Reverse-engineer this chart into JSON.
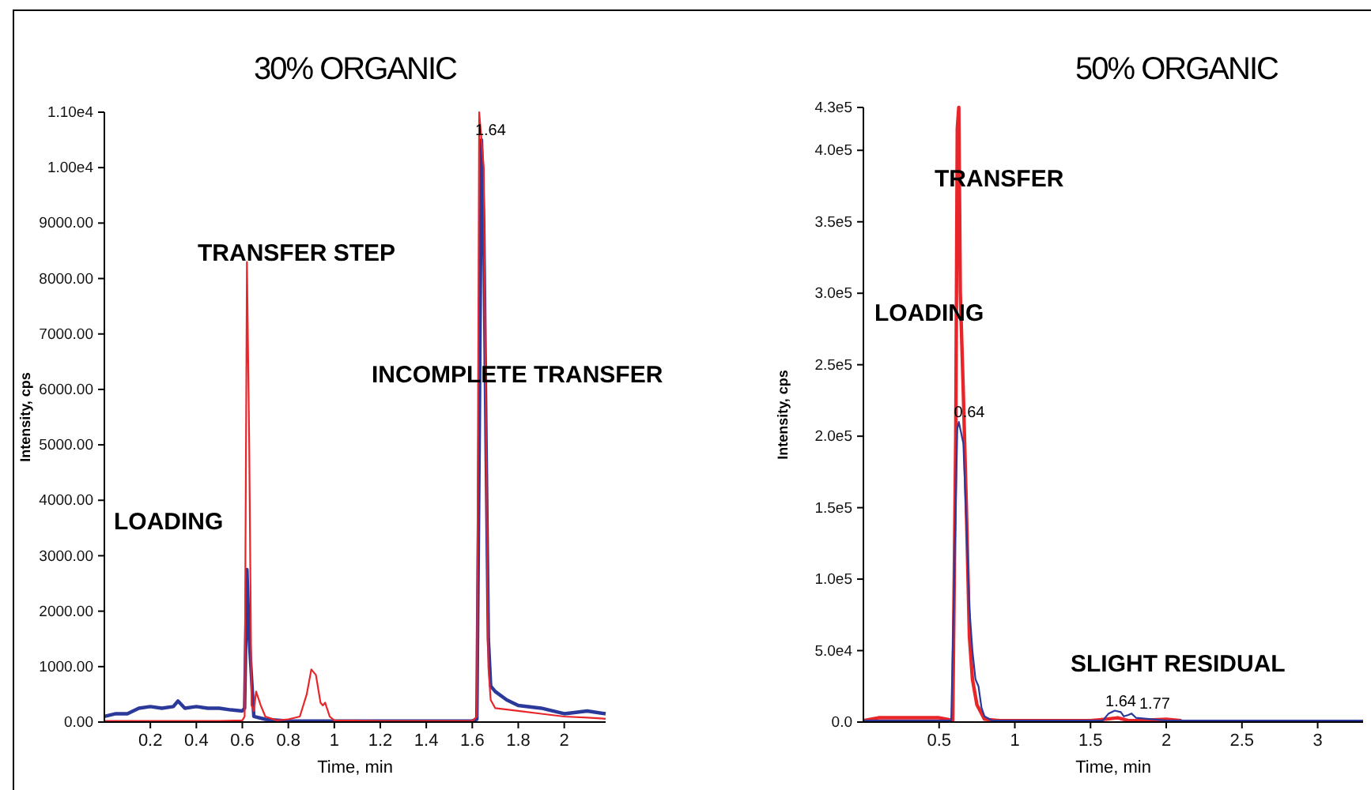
{
  "chart_data": [
    {
      "type": "line",
      "title": "30% ORGANIC",
      "xlabel": "Time, min",
      "ylabel": "Intensity, cps",
      "xlim": [
        0,
        2.18
      ],
      "xticks": [
        0.2,
        0.4,
        0.6,
        0.8,
        1.0,
        1.2,
        1.4,
        1.6,
        1.8,
        2.0
      ],
      "ylim": [
        0,
        11000
      ],
      "yticks": [
        {
          "value": 0,
          "label": "0.00"
        },
        {
          "value": 1000,
          "label": "1000.00"
        },
        {
          "value": 2000,
          "label": "2000.00"
        },
        {
          "value": 3000,
          "label": "3000.00"
        },
        {
          "value": 4000,
          "label": "4000.00"
        },
        {
          "value": 5000,
          "label": "5000.00"
        },
        {
          "value": 6000,
          "label": "6000.00"
        },
        {
          "value": 7000,
          "label": "7000.00"
        },
        {
          "value": 8000,
          "label": "8000.00"
        },
        {
          "value": 9000,
          "label": "9000.00"
        },
        {
          "value": 10000,
          "label": "1.00e4"
        },
        {
          "value": 11000,
          "label": "1.10e4"
        }
      ],
      "grid": false,
      "series": [
        {
          "color": "#2b3a9a",
          "x": [
            0,
            0.05,
            0.1,
            0.15,
            0.2,
            0.25,
            0.3,
            0.32,
            0.35,
            0.4,
            0.45,
            0.5,
            0.55,
            0.6,
            0.61,
            0.62,
            0.63,
            0.65,
            0.7,
            0.8,
            1.0,
            1.2,
            1.4,
            1.6,
            1.62,
            1.63,
            1.64,
            1.65,
            1.66,
            1.67,
            1.68,
            1.7,
            1.75,
            1.8,
            1.9,
            2.0,
            2.1,
            2.18
          ],
          "values": [
            100,
            150,
            150,
            250,
            280,
            250,
            280,
            380,
            250,
            280,
            250,
            250,
            220,
            200,
            250,
            2750,
            1500,
            100,
            50,
            20,
            20,
            20,
            20,
            20,
            50,
            5000,
            10500,
            9000,
            5000,
            1500,
            650,
            550,
            400,
            300,
            250,
            150,
            200,
            150
          ]
        },
        {
          "color": "#e8262a",
          "x": [
            0,
            0.1,
            0.2,
            0.3,
            0.4,
            0.5,
            0.6,
            0.61,
            0.62,
            0.63,
            0.64,
            0.65,
            0.66,
            0.68,
            0.7,
            0.75,
            0.8,
            0.85,
            0.88,
            0.9,
            0.92,
            0.94,
            0.95,
            0.96,
            0.98,
            1.0,
            1.2,
            1.4,
            1.6,
            1.62,
            1.63,
            1.65,
            1.66,
            1.67,
            1.68,
            1.7,
            1.8,
            1.9,
            2.0,
            2.1,
            2.18
          ],
          "values": [
            20,
            20,
            20,
            20,
            20,
            20,
            30,
            100,
            8300,
            5000,
            300,
            200,
            550,
            300,
            100,
            30,
            50,
            100,
            500,
            950,
            850,
            350,
            300,
            350,
            100,
            30,
            20,
            20,
            20,
            100,
            11000,
            10000,
            5000,
            1000,
            400,
            250,
            200,
            150,
            100,
            80,
            60
          ]
        }
      ],
      "annotations": [
        "TRANSFER STEP",
        "LOADING",
        "INCOMPLETE TRANSFER",
        {
          "text": "1.64",
          "x": 1.64,
          "y": 10500
        }
      ]
    },
    {
      "type": "line",
      "title": "50% ORGANIC",
      "xlabel": "Time, min",
      "ylabel": "Intensity, cps",
      "xlim": [
        0,
        3.3
      ],
      "xticks": [
        0.5,
        1.0,
        1.5,
        2.0,
        2.5,
        3.0
      ],
      "ylim": [
        0,
        430000
      ],
      "yticks": [
        {
          "value": 0,
          "label": "0.0"
        },
        {
          "value": 50000,
          "label": "5.0e4"
        },
        {
          "value": 100000,
          "label": "1.0e5"
        },
        {
          "value": 150000,
          "label": "1.5e5"
        },
        {
          "value": 200000,
          "label": "2.0e5"
        },
        {
          "value": 250000,
          "label": "2.5e5"
        },
        {
          "value": 300000,
          "label": "3.0e5"
        },
        {
          "value": 350000,
          "label": "3.5e5"
        },
        {
          "value": 400000,
          "label": "4.0e5"
        },
        {
          "value": 430000,
          "label": "4.3e5"
        }
      ],
      "grid": false,
      "series": [
        {
          "color": "#e8262a",
          "x": [
            0,
            0.1,
            0.2,
            0.3,
            0.4,
            0.5,
            0.55,
            0.59,
            0.61,
            0.62,
            0.63,
            0.64,
            0.66,
            0.68,
            0.7,
            0.72,
            0.75,
            0.8,
            0.9,
            1.2,
            1.5,
            1.6,
            1.68,
            1.75,
            1.8,
            2.0,
            2.1
          ],
          "values": [
            1000,
            3000,
            3000,
            3000,
            3000,
            3000,
            2000,
            1000,
            200000,
            415000,
            430000,
            300000,
            230000,
            150000,
            60000,
            30000,
            12000,
            2000,
            1000,
            1000,
            1000,
            2000,
            3000,
            1000,
            1000,
            2000,
            1000
          ]
        },
        {
          "color": "#2b3a9a",
          "x": [
            0,
            0.3,
            0.5,
            0.58,
            0.6,
            0.62,
            0.63,
            0.64,
            0.66,
            0.68,
            0.7,
            0.72,
            0.74,
            0.76,
            0.78,
            0.8,
            0.85,
            1.0,
            1.5,
            1.58,
            1.62,
            1.66,
            1.7,
            1.72,
            1.75,
            1.77,
            1.8,
            1.9,
            2.0,
            2.5,
            3.0,
            3.3
          ],
          "values": [
            1000,
            1000,
            1000,
            1000,
            100000,
            205000,
            210000,
            205000,
            195000,
            140000,
            80000,
            50000,
            30000,
            25000,
            10000,
            4000,
            1000,
            1000,
            1000,
            1000,
            6000,
            8000,
            7000,
            4000,
            5000,
            6000,
            3000,
            2000,
            1000,
            1000,
            1000,
            1000
          ]
        }
      ],
      "annotations": [
        "TRANSFER",
        "LOADING",
        "SLIGHT RESIDUAL",
        {
          "text": "0.64",
          "x": 0.64,
          "y": 210000
        },
        {
          "text": "1.64",
          "x": 1.64,
          "y": 8000
        },
        {
          "text": "1.77",
          "x": 1.77,
          "y": 6000
        }
      ]
    }
  ]
}
